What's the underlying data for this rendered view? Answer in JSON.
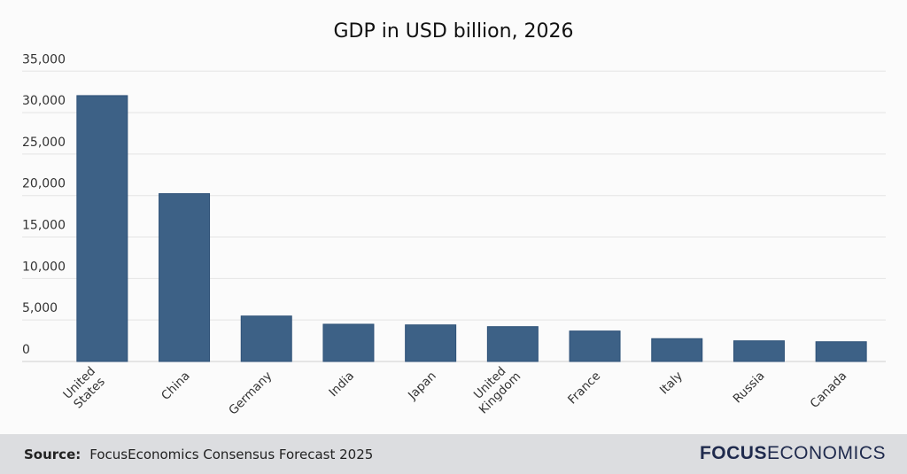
{
  "chart_data": {
    "type": "bar",
    "title": "GDP in USD billion, 2026",
    "categories": [
      "United States",
      "China",
      "Germany",
      "India",
      "Japan",
      "United Kingdom",
      "France",
      "Italy",
      "Russia",
      "Canada"
    ],
    "category_lines": [
      [
        "United",
        "States"
      ],
      [
        "China"
      ],
      [
        "Germany"
      ],
      [
        "India"
      ],
      [
        "Japan"
      ],
      [
        "United",
        "Kingdom"
      ],
      [
        "France"
      ],
      [
        "Italy"
      ],
      [
        "Russia"
      ],
      [
        "Canada"
      ]
    ],
    "values": [
      32050,
      20230,
      5480,
      4490,
      4410,
      4200,
      3670,
      2750,
      2490,
      2380
    ],
    "ylim": [
      0,
      35000
    ],
    "yticks": [
      0,
      5000,
      10000,
      15000,
      20000,
      25000,
      30000,
      35000
    ],
    "ytick_labels": [
      "0",
      "5,000",
      "10,000",
      "15,000",
      "20,000",
      "25,000",
      "30,000",
      "35,000"
    ],
    "xlabel": "",
    "ylabel": "",
    "grid": true,
    "bar_color": "#3d6186"
  },
  "footer": {
    "source_label": "Source:",
    "source_text": "FocusEconomics Consensus Forecast 2025",
    "logo_bold": "FOCUS",
    "logo_light": "ECONOMICS"
  }
}
